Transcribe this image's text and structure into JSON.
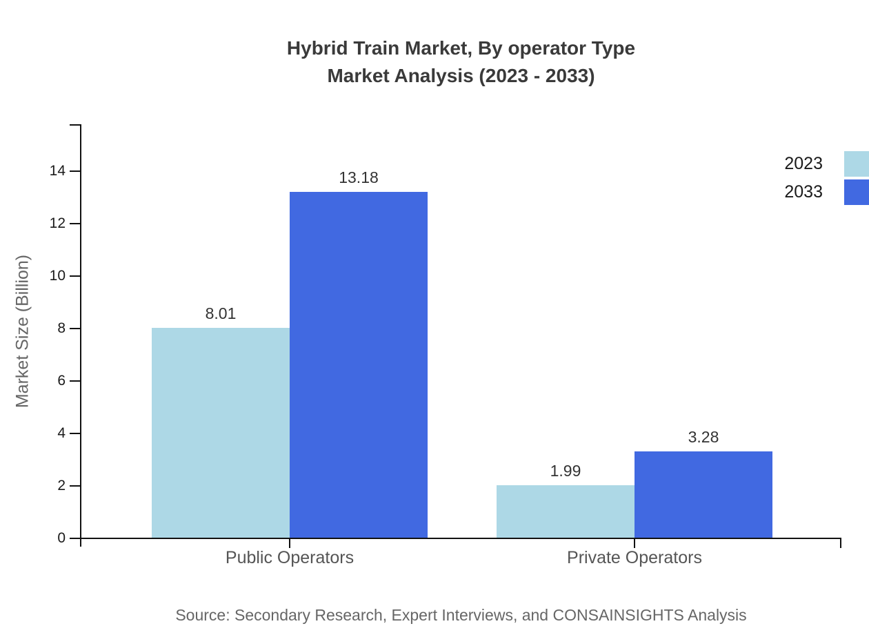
{
  "title": {
    "line1": "Hybrid Train Market, By operator Type",
    "line2": "Market Analysis (2023 - 2033)"
  },
  "source": "Source: Secondary Research, Expert Interviews, and CONSAINSIGHTS Analysis",
  "chart_data": {
    "type": "bar",
    "title": "Hybrid Train Market, By operator Type Market Analysis (2023 - 2033)",
    "categories": [
      "Public Operators",
      "Private Operators"
    ],
    "series": [
      {
        "name": "2023",
        "color": "#ADD8E6",
        "values": [
          8.01,
          1.99
        ],
        "labels": [
          "8.01",
          "1.99"
        ]
      },
      {
        "name": "2033",
        "color": "#4169E1",
        "values": [
          13.18,
          3.28
        ],
        "labels": [
          "13.18",
          "3.28"
        ]
      }
    ],
    "xlabel": "",
    "ylabel": "Market Size (Billion)",
    "ylim": [
      0,
      15.8
    ],
    "yticks": [
      0,
      2,
      4,
      6,
      8,
      10,
      12,
      14
    ],
    "grid": false,
    "legend_position": "top-right"
  }
}
